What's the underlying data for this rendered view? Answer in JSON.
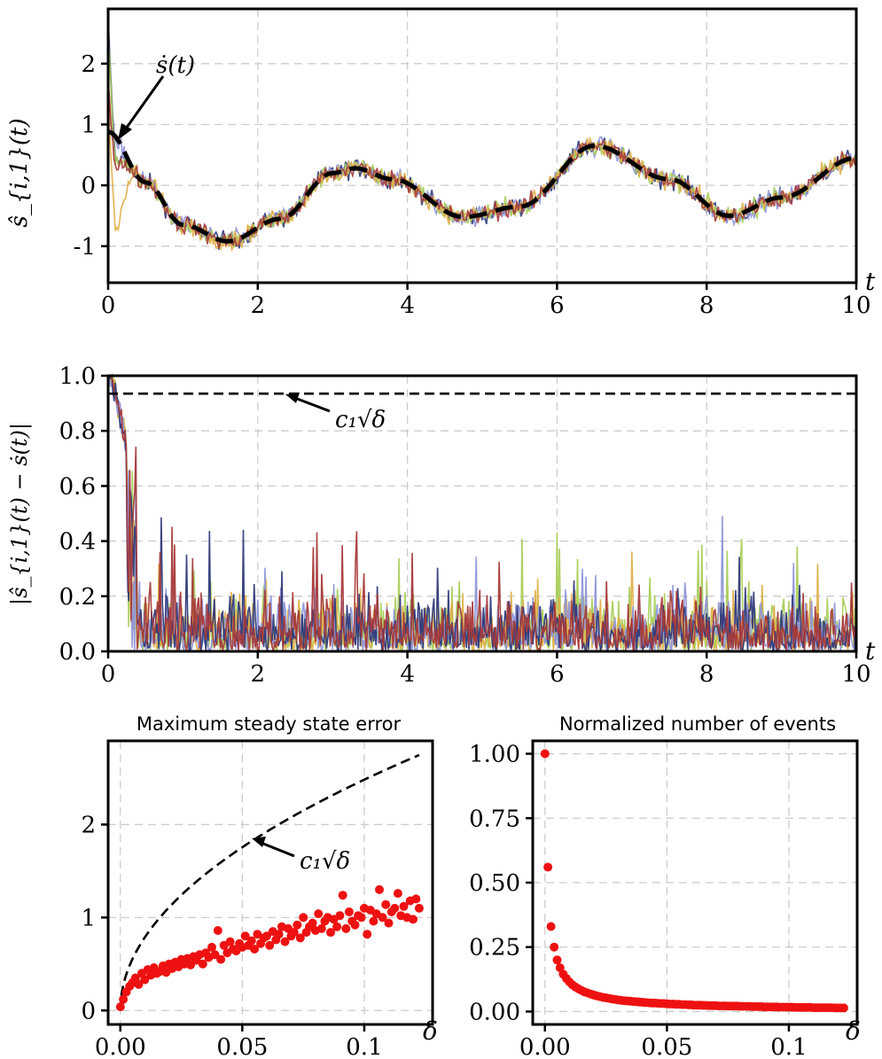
{
  "chart_data": [
    {
      "type": "line",
      "panel": "top",
      "xlabel": "t",
      "ylabel": "ŝ_{i,1}(t)",
      "xlim": [
        0,
        10
      ],
      "ylim": [
        -1.6,
        2.9
      ],
      "xticks": [
        "0",
        "2",
        "4",
        "6",
        "8",
        "10"
      ],
      "yticks": [
        {
          "v": -1,
          "label": "-1"
        },
        {
          "v": 0,
          "label": "0"
        },
        {
          "v": 1,
          "label": "1"
        },
        {
          "v": 2,
          "label": "2"
        }
      ],
      "grid": true,
      "annotation": "ṡ(t)",
      "reference": {
        "style": "dashed",
        "color": "#000000",
        "t": [
          0,
          0.5,
          1,
          1.6,
          2.3,
          3,
          3.3,
          3.8,
          4.75,
          5.5,
          6.5,
          7.5,
          8.3,
          9,
          10
        ],
        "y": [
          0.88,
          0.05,
          -0.65,
          -0.92,
          -0.55,
          0.2,
          0.28,
          0.1,
          -0.52,
          -0.35,
          0.65,
          0.1,
          -0.5,
          -0.2,
          0.45
        ]
      },
      "series": [
        {
          "color": "#2e3a7a"
        },
        {
          "color": "#8f96d8"
        },
        {
          "color": "#a9cf5a"
        },
        {
          "color": "#e0b048"
        },
        {
          "color": "#a63a3a"
        }
      ]
    },
    {
      "type": "line",
      "panel": "middle",
      "xlabel": "t",
      "ylabel": "|ŝ_{i,1}(t) − ṡ(t)|",
      "xlim": [
        0,
        10
      ],
      "ylim": [
        0,
        1
      ],
      "xticks": [
        "0",
        "2",
        "4",
        "6",
        "8",
        "10"
      ],
      "yticks": [
        {
          "v": 0,
          "label": "0.0"
        },
        {
          "v": 0.2,
          "label": "0.2"
        },
        {
          "v": 0.4,
          "label": "0.4"
        },
        {
          "v": 0.6,
          "label": "0.6"
        },
        {
          "v": 0.8,
          "label": "0.8"
        },
        {
          "v": 1,
          "label": "1.0"
        }
      ],
      "grid": true,
      "bound": {
        "value": 0.935,
        "style": "dashed",
        "annotation": "c₁√δ"
      },
      "series": [
        {
          "color": "#2e3a7a"
        },
        {
          "color": "#8f96d8"
        },
        {
          "color": "#a9cf5a"
        },
        {
          "color": "#e0b048"
        },
        {
          "color": "#a63a3a"
        }
      ]
    },
    {
      "type": "scatter",
      "panel": "bottom-left",
      "title": "Maximum steady state error",
      "xlabel": "δ",
      "xlim": [
        -0.005,
        0.128
      ],
      "ylim": [
        -0.15,
        2.9
      ],
      "xticks": [
        {
          "v": 0,
          "label": "0.00"
        },
        {
          "v": 0.05,
          "label": "0.05"
        },
        {
          "v": 0.1,
          "label": "0.1"
        }
      ],
      "yticks": [
        {
          "v": 0,
          "label": "0"
        },
        {
          "v": 1,
          "label": "1"
        },
        {
          "v": 2,
          "label": "2"
        }
      ],
      "grid": true,
      "bound": {
        "c1": 7.85,
        "style": "dashed",
        "annotation": "c₁√δ"
      },
      "color": "#ee1111",
      "points": {
        "x": [
          0.0,
          0.0012,
          0.0025,
          0.0038,
          0.005,
          0.0062,
          0.0075,
          0.0088,
          0.01,
          0.0112,
          0.0125,
          0.0138,
          0.015,
          0.0162,
          0.0175,
          0.0188,
          0.02,
          0.0212,
          0.0225,
          0.0238,
          0.025,
          0.0262,
          0.0275,
          0.0288,
          0.03,
          0.0312,
          0.0325,
          0.0338,
          0.035,
          0.0362,
          0.0375,
          0.0388,
          0.04,
          0.0412,
          0.0425,
          0.0438,
          0.045,
          0.0462,
          0.0475,
          0.0488,
          0.05,
          0.0512,
          0.0525,
          0.0538,
          0.055,
          0.0562,
          0.0575,
          0.0588,
          0.06,
          0.0612,
          0.0625,
          0.0638,
          0.065,
          0.0662,
          0.0675,
          0.0688,
          0.07,
          0.0712,
          0.0725,
          0.0738,
          0.075,
          0.0762,
          0.0775,
          0.0788,
          0.08,
          0.0812,
          0.0825,
          0.0838,
          0.085,
          0.0862,
          0.0875,
          0.0888,
          0.09,
          0.0912,
          0.0925,
          0.0938,
          0.095,
          0.0962,
          0.0975,
          0.0988,
          0.1,
          0.1012,
          0.1025,
          0.1038,
          0.105,
          0.1062,
          0.1075,
          0.1088,
          0.11,
          0.1112,
          0.1125,
          0.1138,
          0.115,
          0.1162,
          0.1175,
          0.1188,
          0.12,
          0.1212,
          0.1225
        ],
        "y": [
          0.04,
          0.12,
          0.2,
          0.26,
          0.3,
          0.35,
          0.28,
          0.4,
          0.33,
          0.44,
          0.38,
          0.46,
          0.4,
          0.42,
          0.48,
          0.41,
          0.5,
          0.45,
          0.52,
          0.47,
          0.55,
          0.5,
          0.56,
          0.49,
          0.58,
          0.54,
          0.6,
          0.5,
          0.62,
          0.57,
          0.68,
          0.6,
          0.86,
          0.55,
          0.7,
          0.62,
          0.74,
          0.66,
          0.64,
          0.72,
          0.68,
          0.8,
          0.7,
          0.75,
          0.66,
          0.82,
          0.72,
          0.78,
          0.8,
          0.7,
          0.85,
          0.76,
          0.82,
          0.9,
          0.74,
          0.88,
          0.8,
          0.84,
          0.92,
          0.78,
          1.0,
          0.84,
          0.9,
          0.94,
          0.86,
          1.04,
          0.88,
          0.96,
          1.0,
          0.84,
          0.98,
          0.9,
          1.02,
          1.24,
          0.88,
          1.06,
          0.96,
          0.92,
          1.02,
          1.0,
          1.1,
          0.82,
          1.08,
          0.96,
          1.04,
          1.3,
          1.0,
          1.14,
          0.94,
          1.06,
          1.1,
          1.26,
          1.02,
          1.12,
          1.0,
          1.18,
          0.98,
          1.2,
          1.1
        ]
      }
    },
    {
      "type": "scatter",
      "panel": "bottom-right",
      "title": "Normalized number of events",
      "xlabel": "δ",
      "xlim": [
        -0.005,
        0.128
      ],
      "ylim": [
        -0.05,
        1.05
      ],
      "xticks": [
        {
          "v": 0,
          "label": "0.00"
        },
        {
          "v": 0.05,
          "label": "0.05"
        },
        {
          "v": 0.1,
          "label": "0.1"
        }
      ],
      "yticks": [
        {
          "v": 0,
          "label": "0.00"
        },
        {
          "v": 0.25,
          "label": "0.25"
        },
        {
          "v": 0.5,
          "label": "0.50"
        },
        {
          "v": 0.75,
          "label": "0.75"
        },
        {
          "v": 1,
          "label": "1.00"
        }
      ],
      "grid": true,
      "color": "#ee1111",
      "points": {
        "x": [
          0.0,
          0.0012,
          0.0025,
          0.0038,
          0.005,
          0.0062,
          0.0075,
          0.0088,
          0.01,
          0.0112,
          0.0125,
          0.0138,
          0.015,
          0.0162,
          0.0175,
          0.0188,
          0.02,
          0.0212,
          0.0225,
          0.0238,
          0.025,
          0.0262,
          0.0275,
          0.0288,
          0.03,
          0.0312,
          0.0325,
          0.0338,
          0.035,
          0.0362,
          0.0375,
          0.0388,
          0.04,
          0.0412,
          0.0425,
          0.0438,
          0.045,
          0.0462,
          0.0475,
          0.0488,
          0.05,
          0.0512,
          0.0525,
          0.0538,
          0.055,
          0.0562,
          0.0575,
          0.0588,
          0.06,
          0.0612,
          0.0625,
          0.0638,
          0.065,
          0.0662,
          0.0675,
          0.0688,
          0.07,
          0.0712,
          0.0725,
          0.0738,
          0.075,
          0.0762,
          0.0775,
          0.0788,
          0.08,
          0.0812,
          0.0825,
          0.0838,
          0.085,
          0.0862,
          0.0875,
          0.0888,
          0.09,
          0.0912,
          0.0925,
          0.0938,
          0.095,
          0.0962,
          0.0975,
          0.0988,
          0.1,
          0.1012,
          0.1025,
          0.1038,
          0.105,
          0.1062,
          0.1075,
          0.1088,
          0.11,
          0.1112,
          0.1125,
          0.1138,
          0.115,
          0.1162,
          0.1175,
          0.1188,
          0.12,
          0.1212,
          0.1225
        ],
        "y": [
          1.0,
          0.56,
          0.33,
          0.25,
          0.2,
          0.17,
          0.145,
          0.128,
          0.115,
          0.104,
          0.095,
          0.088,
          0.082,
          0.076,
          0.072,
          0.068,
          0.064,
          0.061,
          0.058,
          0.055,
          0.053,
          0.051,
          0.049,
          0.047,
          0.045,
          0.044,
          0.042,
          0.041,
          0.04,
          0.039,
          0.038,
          0.037,
          0.036,
          0.035,
          0.034,
          0.033,
          0.033,
          0.032,
          0.031,
          0.031,
          0.03,
          0.029,
          0.029,
          0.028,
          0.028,
          0.027,
          0.027,
          0.026,
          0.026,
          0.025,
          0.025,
          0.025,
          0.024,
          0.024,
          0.023,
          0.023,
          0.023,
          0.022,
          0.022,
          0.022,
          0.021,
          0.021,
          0.021,
          0.021,
          0.02,
          0.02,
          0.02,
          0.02,
          0.019,
          0.019,
          0.019,
          0.019,
          0.018,
          0.018,
          0.018,
          0.018,
          0.018,
          0.017,
          0.017,
          0.017,
          0.017,
          0.017,
          0.016,
          0.016,
          0.016,
          0.016,
          0.016,
          0.016,
          0.015,
          0.015,
          0.015,
          0.015,
          0.015,
          0.015,
          0.015,
          0.014,
          0.014,
          0.014,
          0.014
        ]
      }
    }
  ]
}
